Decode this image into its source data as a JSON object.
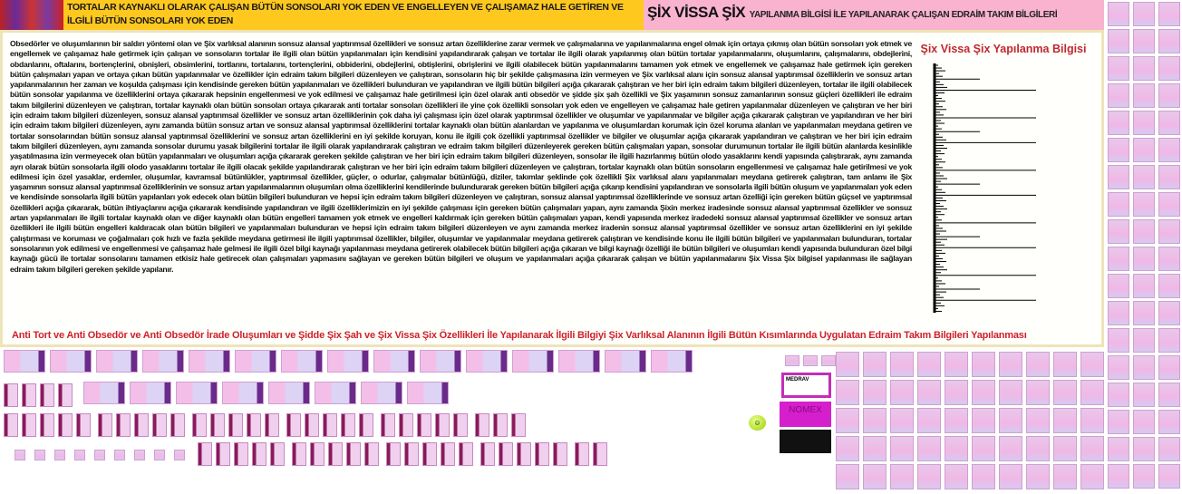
{
  "header": {
    "left_title": "TORTALAR KAYNAKLI OLARAK ÇALIŞAN BÜTÜN SONSOLARI YOK EDEN VE ENGELLEYEN VE ÇALIŞAMAZ HALE GETİREN VE İLGİLİ BÜTÜN SONSOLARI YOK EDEN",
    "right_title_big": "ŞİX VİSSA ŞİX",
    "right_title_small": "YAPILANMA BİLGİSİ İLE YAPILANARAK ÇALIŞAN EDRAİM TAKIM BİLGİLERİ"
  },
  "main": {
    "paragraph": "Obsedörler ve oluşumlarının bir saldırı yöntemi olan ve Şix varlıksal alanının sonsuz alansal yaptırımsal özellikleri ve sonsuz artan özelliklerine zarar vermek ve çalışmalarına ve yapılanmalarına engel olmak için ortaya çıkmış olan bütün sonsoları yok etmek ve engellemek ve çalışamaz hale getirmek için çalışan ve sonsoların tortalar ile ilgili olan bütün yapılanmaları için kendisini yapılandırarak çalışan ve tortalar ile ilgili olarak yapılanmış olan bütün tortalar yapılanmalarını, oluşumlarını, çalışmalarını, obdejlerini, obdanlarını, oftalarını, bortençlerini, obnişleri, obsimlerini, tortlarını, tortalarını, tortençlerini, obbiderini, obdejlerini, obtişlerini, obrişlerini ve ilgili olabilecek bütün yapılanmalarını tamamen yok etmek ve engellemek ve çalışamaz hale getirmek için gereken bütün çalışmaları yapan ve ortaya çıkan bütün yapılanmalar ve özellikler için edraim takım bilgileri düzenleyen ve çalıştıran, sonsoların hiç bir şekilde çalışmasına izin vermeyen ve Şix varlıksal alanı için sonsuz alansal yaptırımsal özelliklerin ve sonsuz artan yapılanmalarının her zaman ve koşulda çalışması için kendisinde gereken bütün yapılanmaları ve özellikleri bulunduran ve yapılandıran ve ilgili bütün bilgileri açığa çıkararak çalıştıran ve her biri için edraim takım bilgileri düzenleyen, tortalar ile ilgili olabilecek bütün sonsolar yapılanma ve özelliklerini ortaya çıkararak hepsinin engellenmesi ve yok edilmesi ve çalışamaz hale getirilmesi için özel olarak anti obsedör ve şidde şix şah özellikli ve Şix yaşamının sonsuz zamanlarının sonsuz güçleri özellikleri ile edraim takım bilgilerini düzenleyen ve çalıştıran, tortalar kaynaklı olan bütün sonsoları ortaya çıkararak anti tortalar sonsoları özellikleri ile yine çok özellikli sonsoları yok eden ve engelleyen ve çalışamaz hale getiren yapılanmalar düzenleyen ve çalıştıran ve her biri için edraim takım bilgileri düzenleyen, sonsuz alansal yaptırımsal özellikler ve sonsuz artan özelliklerinin çok daha iyi çalışması için özel olarak yaptırımsal özellikler ve oluşumlar ve yapılanmalar ve bilgiler açığa çıkararak çalıştıran ve yapılandıran ve her biri için edraim takım bilgileri düzenleyen, aynı zamanda bütün sonsuz artan ve sonsuz alansal yaptırımsal özelliklerini tortalar kaynaklı olan bütün alanlardan ve yapılanma ve oluşumlardan korumak için özel koruma alanları ve yapılanmaları meydana getiren ve tortalar sonsolarından bütün sonsuz alansal yaptırımsal özelliklerini ve sonsuz artan özelliklerini en iyi şekilde koruyan, konu ile ilgili çok özellikli yaptırımsal özellikler ve bilgiler ve oluşumlar açığa çıkararak yapılandıran ve çalıştıran ve her biri için edraim takım bilgileri düzenleyen, aynı zamanda sonsolar durumu yasak bilgilerini tortalar ile ilgili olarak yapılandırarak çalıştıran ve edraim takım bilgileri düzenleyerek gereken bütün çalışmaları yapan, sonsolar durumunun tortalar ile ilgili bütün alanlarda kesinlikle yaşatılmasına izin vermeyecek olan bütün yapılanmaları ve oluşumları açığa çıkararak gereken şekilde çalıştıran ve her biri için edraim takım bilgileri düzenleyen, sonsolar ile ilgili hazırlanmış bütün olodo yasaklarını kendi yapısında çalıştırarak, aynı zamanda ayrı olarak bütün sonsolarla ilgili olodo yasaklarını tortalar ile ilgili olacak şekilde yapılandırarak çalıştıran ve her biri için edraim takım bilgileri düzenleyen ve çalıştıran, tortalar kaynaklı olan bütün sonsoların engellenmesi ve çalışamaz hale getirilmesi ve yok edilmesi için özel yasaklar, erdemler, oluşumlar, kavramsal bütünlükler, yaptırımsal özellikler, güçler, o odurlar, çalışmalar bütünlüğü, diziler, takımlar şeklinde çok özellikli Şix varlıksal alanı yapılanmaları meydana getirerek çalıştıran, tam anlamı ile Şix yaşamının sonsuz alansal yaptırımsal özelliklerinin ve sonsuz artan yapılanmalarının oluşumları olma özelliklerini kendilerinde bulundurarak gereken bütün bilgileri açığa çıkarıp kendisini yapılandıran ve sonsolarla ilgili bütün oluşum ve yapılanmaları yok eden ve kendisinde sonsolarla ilgili bütün yapılanları yok edecek olan bütün bilgileri bulunduran ve hepsi için edraim takım bilgileri düzenleyen ve çalıştıran, sonsuz alansal yaptırımsal özelliklerinde ve sonsuz artan özelliği için gereken bütün güçsel ve yaptırımsal özellikleri açığa çıkararak, bütün ihtiyaçlarını açığa çıkararak kendisinde yapılandıran ve ilgili özelliklerimizin en iyi şekilde çalışması için gereken bütün çalışmaları yapan, aynı zamanda Şixin merkez iradesinde sonsuz alansal yaptırımsal özellikler ve sonsuz artan yapılanmaları ile ilgili tortalar kaynaklı olan ve diğer kaynaklı olan bütün engelleri tamamen yok etmek ve engelleri kaldırmak için gereken bütün çalışmaları yapan, kendi yapısında merkez iradedeki sonsuz alansal yaptırımsal özellikler ve sonsuz artan özellikleri ile ilgili bütün engelleri kaldıracak olan bütün bilgileri ve yapılanmaları bulunduran ve hepsi için edraim takım bilgileri düzenleyen ve aynı zamanda merkez iradenin sonsuz alansal yaptırımsal özellikler ve sonsuz artan özelliklerini en iyi şekilde çalıştırması ve koruması ve çoğalmaları çok hızlı ve fazla şekilde meydana getirmesi ile ilgili yaptırımsal özellikler, bilgiler, oluşumlar ve yapılanmalar meydana getirerek çalıştıran ve kendisinde konu ile ilgili bütün bilgileri ve yapılanmaları bulunduran, tortalar sonsolarının yok edilmesi ve engellenmesi ve çalışamaz hale gelmesi ile ilgili özel bilgi kaynağı yapılanması meydana getirerek olabilecek bütün bilgileri açığa çıkaran ve bilgi kaynağı özelliği ile bütün bilgileri ve oluşumları kendi yapısında bulunduran özel bilgi kaynağı gücü ile tortalar sonsolarını tamamen etkisiz hale getirecek olan çalışmaları yapmasını sağlayan ve gereken bütün bilgileri ve oluşum ve yapılanmaları açığa çıkararak çalışan ve bütün yapılanmalarını Şix Vissa Şix bilgisel yapılanması ile sağlayan edraim takım bilgileri gereken şekilde yapılanır.",
    "side_title": "Şix Vissa Şix Yapılanma Bilgisi",
    "bottom_title": "Anti Tort ve Anti Obsedör ve Anti Obsedör İrade Oluşumları ve Şidde Şix Şah ve Şix Vissa Şix Özellikleri İle Yapılanarak İlgili Bilgiyi Şix Varlıksal Alanının İlgili Bütün Kısımlarında Uygulatan Edraim Takım Bilgileri Yapılanması"
  },
  "ads": {
    "ad1": "MEDRAV",
    "ad2": "NOMEX"
  },
  "colors": {
    "header_yellow": "#ffc81e",
    "header_pink": "#f9b3cf",
    "title_red": "#c0282e",
    "panel_border": "#efe3b8"
  }
}
